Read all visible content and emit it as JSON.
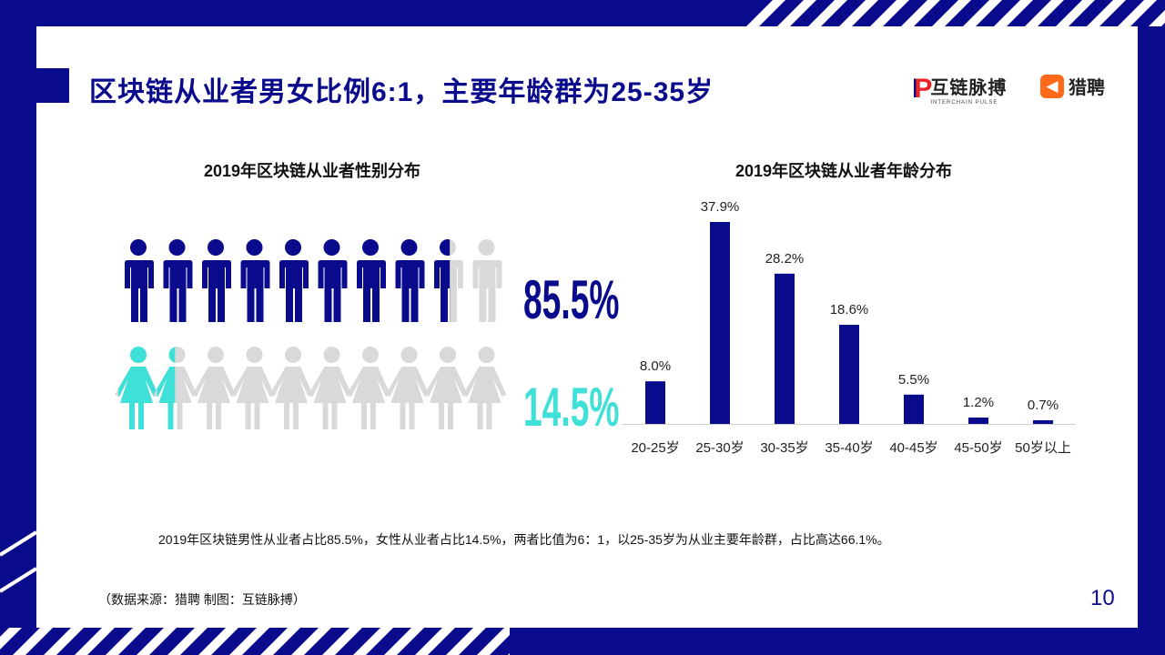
{
  "slide": {
    "title": "区块链从业者男女比例6:1，主要年龄群为25-35岁",
    "logos": {
      "interchain_cn": "互链脉搏",
      "interchain_en": "INTERCHAIN PULSE",
      "liepin_cn": "猎聘"
    },
    "summary": "2019年区块链男性从业者占比85.5%，女性从业者占比14.5%，两者比值为6：1，以25-35岁为从业主要年龄群，占比高达66.1%。",
    "source": "（数据来源：猎聘   制图：互链脉搏）",
    "page_number": "10",
    "colors": {
      "navy": "#0a0a8c",
      "teal": "#3ee0d8",
      "grey": "#d9d9d9",
      "white": "#ffffff"
    }
  },
  "chart_data": [
    {
      "type": "pictograph",
      "title": "2019年区块链从业者性别分布",
      "icons_per_row": 10,
      "series": [
        {
          "name": "男",
          "value": 85.5,
          "label": "85.5%",
          "color": "#0a0a8c",
          "icon": "male-person-icon"
        },
        {
          "name": "女",
          "value": 14.5,
          "label": "14.5%",
          "color": "#3ee0d8",
          "icon": "female-person-icon"
        }
      ]
    },
    {
      "type": "bar",
      "title": "2019年区块链从业者年龄分布",
      "categories": [
        "20-25岁",
        "25-30岁",
        "30-35岁",
        "35-40岁",
        "40-45岁",
        "45-50岁",
        "50岁以上"
      ],
      "values": [
        8.0,
        37.9,
        28.2,
        18.6,
        5.5,
        1.2,
        0.7
      ],
      "value_labels": [
        "8.0%",
        "37.9%",
        "28.2%",
        "18.6%",
        "5.5%",
        "1.2%",
        "0.7%"
      ],
      "ylim": [
        0,
        37.9
      ],
      "grid": false,
      "color": "#0a0a8c"
    }
  ]
}
